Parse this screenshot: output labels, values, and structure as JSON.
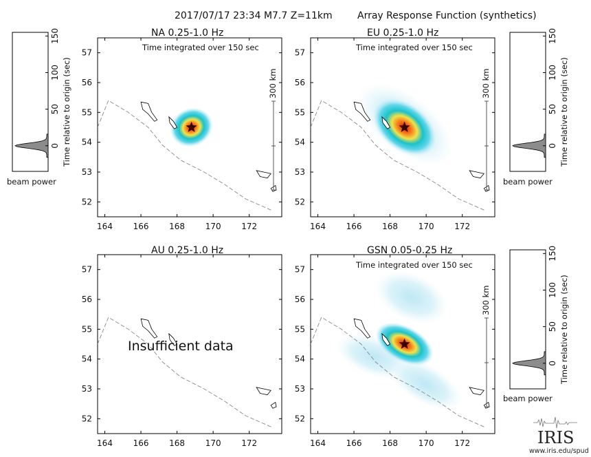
{
  "header": {
    "event": "2017/07/17 23:34  M7.7  Z=11km",
    "figure_title": "Array Response Function (synthetics)"
  },
  "colors": {
    "epicenter_star": "#3a0000",
    "beam_fill": "#8c8c8c",
    "coastline": "#888888",
    "heatmap_scale": [
      "#ffffff",
      "#cceef7",
      "#5fd6ea",
      "#1cc2c9",
      "#f2e24a",
      "#f57c1a",
      "#d41a10"
    ]
  },
  "beam_axis_label": "Time relative to origin (sec)",
  "beam_caption": "beam power",
  "scale_bar_label": "300 km",
  "integration_note": "Time integrated over 150 sec",
  "panels": [
    {
      "id": "NA",
      "title": "NA  0.25-1.0 Hz",
      "note": "Time integrated over 150 sec",
      "has_data": true
    },
    {
      "id": "EU",
      "title": "EU  0.25-1.0 Hz",
      "note": "Time integrated over 150 sec",
      "has_data": true
    },
    {
      "id": "AU",
      "title": "AU  0.25-1.0 Hz",
      "note": "",
      "has_data": false,
      "message": "Insufficient data"
    },
    {
      "id": "GSN",
      "title": "GSN  0.05-0.25 Hz",
      "note": "Time integrated over 150 sec",
      "has_data": true
    }
  ],
  "logo": {
    "text": "IRIS",
    "url_text": "www.iris.edu/spud"
  },
  "chart_data": [
    {
      "type": "heatmap",
      "title": "NA  0.25-1.0 Hz",
      "xlim": [
        163.6,
        173.8
      ],
      "ylim": [
        51.5,
        57.5
      ],
      "x_ticks": [
        164,
        166,
        168,
        170,
        172
      ],
      "y_ticks": [
        52,
        53,
        54,
        55,
        56,
        57
      ],
      "epicenter": {
        "lon": 168.8,
        "lat": 54.5
      },
      "beam": {
        "ylim": [
          -35,
          155
        ],
        "ticks": [
          0,
          50,
          100,
          150
        ],
        "peak_time": 0
      }
    },
    {
      "type": "heatmap",
      "title": "EU  0.25-1.0 Hz",
      "xlim": [
        163.6,
        173.8
      ],
      "ylim": [
        51.5,
        57.5
      ],
      "x_ticks": [
        164,
        166,
        168,
        170,
        172
      ],
      "y_ticks": [
        52,
        53,
        54,
        55,
        56,
        57
      ],
      "epicenter": {
        "lon": 168.8,
        "lat": 54.5
      },
      "beam": {
        "ylim": [
          -35,
          155
        ],
        "ticks": [
          0,
          50,
          100,
          150
        ],
        "peak_time": 0
      }
    },
    {
      "type": "heatmap",
      "title": "AU  0.25-1.0 Hz",
      "xlim": [
        163.6,
        173.8
      ],
      "ylim": [
        51.5,
        57.5
      ],
      "x_ticks": [
        164,
        166,
        168,
        170,
        172
      ],
      "y_ticks": [
        52,
        53,
        54,
        55,
        56,
        57
      ]
    },
    {
      "type": "heatmap",
      "title": "GSN  0.05-0.25 Hz",
      "xlim": [
        163.6,
        173.8
      ],
      "ylim": [
        51.5,
        57.5
      ],
      "x_ticks": [
        164,
        166,
        168,
        170,
        172
      ],
      "y_ticks": [
        52,
        53,
        54,
        55,
        56,
        57
      ],
      "epicenter": {
        "lon": 168.8,
        "lat": 54.5
      },
      "beam": {
        "ylim": [
          -35,
          155
        ],
        "ticks": [
          0,
          50,
          100,
          150
        ],
        "peak_time": 0
      }
    }
  ]
}
